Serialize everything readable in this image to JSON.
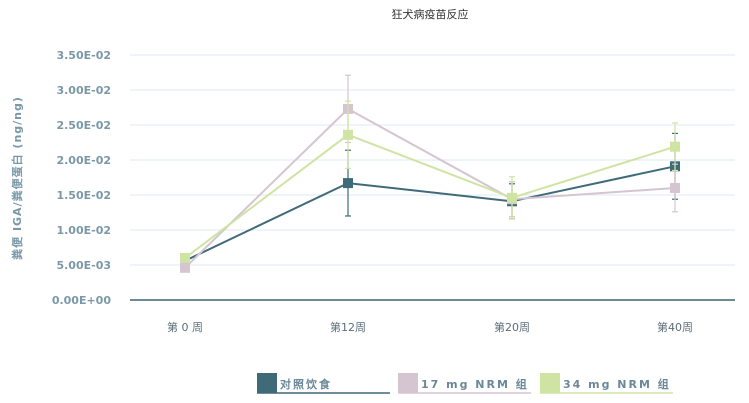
{
  "chart_data": {
    "type": "line",
    "title": "狂犬病疫苗反应",
    "xlabel": "",
    "ylabel": "粪便 IGA/粪便蛋白 (ng/ng)",
    "categories": [
      "第 0 周",
      "第12周",
      "第20周",
      "第40周"
    ],
    "ylim": [
      0,
      0.035
    ],
    "yticks": [
      0,
      0.005,
      0.01,
      0.015,
      0.02,
      0.025,
      0.03,
      0.035
    ],
    "ytick_labels": [
      "0.00E+00",
      "5.00E-03",
      "1.00E-02",
      "1.50E-02",
      "2.00E-02",
      "2.50E-02",
      "3.00E-02",
      "3.50E-02"
    ],
    "grid": true,
    "legend_position": "bottom",
    "series": [
      {
        "name": "对照饮食",
        "color": "#3f6a78",
        "values": [
          0.0056,
          0.0167,
          0.0141,
          0.0191
        ],
        "errors": [
          0,
          0.0047,
          0.0025,
          0.0047
        ]
      },
      {
        "name": "17 mg NRM 组",
        "color": "#d5c5d1",
        "values": [
          0.0046,
          0.0273,
          0.0144,
          0.016
        ],
        "errors": [
          0,
          0.0048,
          0.0025,
          0.0034
        ]
      },
      {
        "name": "34 mg NRM 组",
        "color": "#cfe3a3",
        "values": [
          0.006,
          0.0236,
          0.0146,
          0.0219
        ],
        "errors": [
          0,
          0.0048,
          0.003,
          0.0034
        ]
      }
    ]
  }
}
